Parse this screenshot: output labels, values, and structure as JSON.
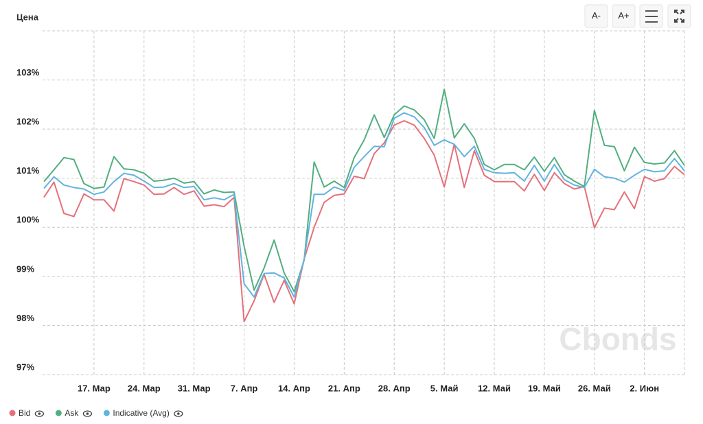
{
  "chart_data": {
    "type": "line",
    "ylabel": "Цена",
    "buttons": [
      "A-",
      "A+"
    ],
    "watermark": "Cbonds",
    "categories": [
      null,
      null,
      null,
      null,
      null,
      "17. Мар",
      null,
      null,
      null,
      null,
      "24. Мар",
      null,
      null,
      null,
      null,
      "31. Мар",
      null,
      null,
      null,
      null,
      "7. Апр",
      null,
      null,
      null,
      null,
      "14. Апр",
      null,
      null,
      null,
      null,
      "21. Апр",
      null,
      null,
      null,
      null,
      "28. Апр",
      null,
      null,
      null,
      null,
      "5. Май",
      null,
      null,
      null,
      null,
      "12. Май",
      null,
      null,
      null,
      null,
      "19. Май",
      null,
      null,
      null,
      null,
      "26. Май",
      null,
      null,
      null,
      null,
      "2. Июн",
      null,
      null,
      null,
      null
    ],
    "series": [
      {
        "name": "Bid",
        "color": "#e5707a",
        "values": [
          100.61,
          100.92,
          100.28,
          100.22,
          100.68,
          100.56,
          100.56,
          100.33,
          100.99,
          100.93,
          100.86,
          100.67,
          100.68,
          100.81,
          100.67,
          100.74,
          100.43,
          100.46,
          100.42,
          100.61,
          98.08,
          98.5,
          99.04,
          98.47,
          98.92,
          98.44,
          99.35,
          100.0,
          100.51,
          100.65,
          100.68,
          101.04,
          100.99,
          101.5,
          101.72,
          102.08,
          102.17,
          102.08,
          101.81,
          101.47,
          100.82,
          101.69,
          100.81,
          101.56,
          101.06,
          100.93,
          100.93,
          100.93,
          100.74,
          101.08,
          100.75,
          101.11,
          100.89,
          100.78,
          100.83,
          99.99,
          100.39,
          100.36,
          100.72,
          100.38,
          101.03,
          100.94,
          100.99,
          101.24,
          101.07
        ]
      },
      {
        "name": "Ask",
        "color": "#52ae7f",
        "values": [
          100.93,
          101.17,
          101.42,
          101.38,
          100.89,
          100.79,
          100.82,
          101.44,
          101.19,
          101.17,
          101.1,
          100.94,
          100.96,
          101.0,
          100.9,
          100.93,
          100.68,
          100.76,
          100.71,
          100.72,
          99.61,
          98.72,
          99.17,
          99.74,
          99.07,
          98.69,
          99.33,
          101.33,
          100.82,
          100.94,
          100.81,
          101.42,
          101.78,
          102.29,
          101.83,
          102.29,
          102.47,
          102.39,
          102.19,
          101.81,
          102.81,
          101.82,
          102.11,
          101.81,
          101.28,
          101.17,
          101.28,
          101.28,
          101.17,
          101.43,
          101.14,
          101.42,
          101.07,
          100.94,
          100.83,
          102.38,
          101.67,
          101.64,
          101.15,
          101.63,
          101.32,
          101.29,
          101.31,
          101.56,
          101.26
        ]
      },
      {
        "name": "Indicative (Avg)",
        "color": "#62b3e0",
        "values": [
          100.79,
          101.03,
          100.86,
          100.81,
          100.78,
          100.67,
          100.72,
          100.93,
          101.1,
          101.06,
          100.94,
          100.81,
          100.82,
          100.89,
          100.81,
          100.83,
          100.56,
          100.6,
          100.56,
          100.67,
          98.85,
          98.58,
          99.06,
          99.07,
          98.97,
          98.58,
          99.35,
          100.67,
          100.67,
          100.82,
          100.75,
          101.22,
          101.44,
          101.65,
          101.64,
          102.22,
          102.33,
          102.25,
          102.03,
          101.67,
          101.78,
          101.69,
          101.44,
          101.65,
          101.18,
          101.11,
          101.1,
          101.11,
          100.94,
          101.26,
          100.94,
          101.28,
          100.97,
          100.86,
          100.81,
          101.18,
          101.03,
          101.0,
          100.92,
          101.06,
          101.18,
          101.13,
          101.15,
          101.4,
          101.15
        ]
      }
    ],
    "ylim": [
      97,
      104
    ],
    "yticks": [
      {
        "value": 97,
        "label": "97%"
      },
      {
        "value": 98,
        "label": "98%"
      },
      {
        "value": 99,
        "label": "99%"
      },
      {
        "value": 100,
        "label": "100%"
      },
      {
        "value": 101,
        "label": "101%"
      },
      {
        "value": 102,
        "label": "102%"
      },
      {
        "value": 103,
        "label": "103%"
      }
    ],
    "grid": true,
    "legend": "bottom"
  }
}
